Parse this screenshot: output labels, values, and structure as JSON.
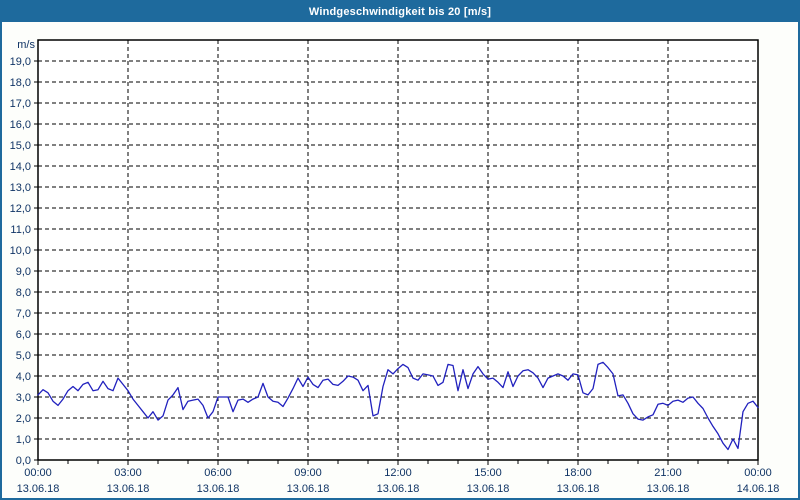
{
  "window": {
    "title": "Windgeschwindigkeit bis 20 [m/s]"
  },
  "colors": {
    "frame": "#1E6A9D",
    "titlebar_text": "#FFFFFF",
    "page_bg": "#FDFEFB",
    "plot_bg": "#FFFFFF",
    "grid": "#000000",
    "axis": "#000000",
    "tick_text": "#103465",
    "series_line": "#2121BE"
  },
  "chart_data": {
    "type": "line",
    "title": "Windgeschwindigkeit bis 20 [m/s]",
    "unit_label": "m/s",
    "ylim": [
      0,
      20
    ],
    "ytick_step": 1.0,
    "ytick_labels": [
      "0,0",
      "1,0",
      "2,0",
      "3,0",
      "4,0",
      "5,0",
      "6,0",
      "7,0",
      "8,0",
      "9,0",
      "10,0",
      "11,0",
      "12,0",
      "13,0",
      "14,0",
      "15,0",
      "16,0",
      "17,0",
      "18,0",
      "19,0"
    ],
    "grid": "dashed",
    "legend": "none",
    "x_start": "13.06.18 00:00",
    "x_end": "14.06.18 00:00",
    "sample_interval_minutes": 10,
    "minor_xtick_hours": 1,
    "major_xtick_hours": 3,
    "xticks": [
      {
        "time": "00:00",
        "date": "13.06.18"
      },
      {
        "time": "03:00",
        "date": "13.06.18"
      },
      {
        "time": "06:00",
        "date": "13.06.18"
      },
      {
        "time": "09:00",
        "date": "13.06.18"
      },
      {
        "time": "12:00",
        "date": "13.06.18"
      },
      {
        "time": "15:00",
        "date": "13.06.18"
      },
      {
        "time": "18:00",
        "date": "13.06.18"
      },
      {
        "time": "21:00",
        "date": "13.06.18"
      },
      {
        "time": "00:00",
        "date": "14.06.18"
      }
    ],
    "series": [
      {
        "name": "Windgeschwindigkeit",
        "unit": "m/s",
        "values": [
          3.1,
          3.35,
          3.2,
          2.8,
          2.6,
          2.9,
          3.3,
          3.5,
          3.3,
          3.6,
          3.7,
          3.3,
          3.35,
          3.75,
          3.4,
          3.3,
          3.9,
          3.6,
          3.3,
          2.9,
          2.6,
          2.3,
          2.0,
          2.3,
          1.9,
          2.1,
          2.85,
          3.1,
          3.45,
          2.4,
          2.8,
          2.85,
          2.9,
          2.6,
          2.0,
          2.3,
          3.0,
          3.0,
          3.0,
          2.3,
          2.85,
          2.9,
          2.75,
          2.9,
          3.0,
          3.65,
          3.0,
          2.8,
          2.75,
          2.55,
          2.95,
          3.4,
          3.9,
          3.5,
          3.95,
          3.6,
          3.45,
          3.8,
          3.85,
          3.6,
          3.55,
          3.75,
          4.0,
          3.95,
          3.8,
          3.3,
          3.55,
          2.1,
          2.2,
          3.5,
          4.3,
          4.1,
          4.35,
          4.55,
          4.4,
          3.9,
          3.8,
          4.1,
          4.05,
          4.0,
          3.55,
          3.7,
          4.55,
          4.5,
          3.3,
          4.3,
          3.4,
          4.1,
          4.45,
          4.1,
          3.85,
          3.9,
          3.7,
          3.45,
          4.2,
          3.5,
          4.0,
          4.25,
          4.3,
          4.15,
          3.9,
          3.45,
          3.9,
          4.0,
          4.1,
          4.0,
          3.8,
          4.1,
          4.05,
          3.2,
          3.1,
          3.4,
          4.55,
          4.65,
          4.4,
          4.1,
          3.05,
          3.1,
          2.7,
          2.2,
          1.95,
          1.9,
          2.05,
          2.15,
          2.65,
          2.7,
          2.6,
          2.8,
          2.85,
          2.75,
          2.95,
          3.0,
          2.7,
          2.45,
          2.0,
          1.6,
          1.25,
          0.8,
          0.5,
          1.0,
          0.55,
          2.3,
          2.7,
          2.8,
          2.5
        ]
      }
    ]
  }
}
